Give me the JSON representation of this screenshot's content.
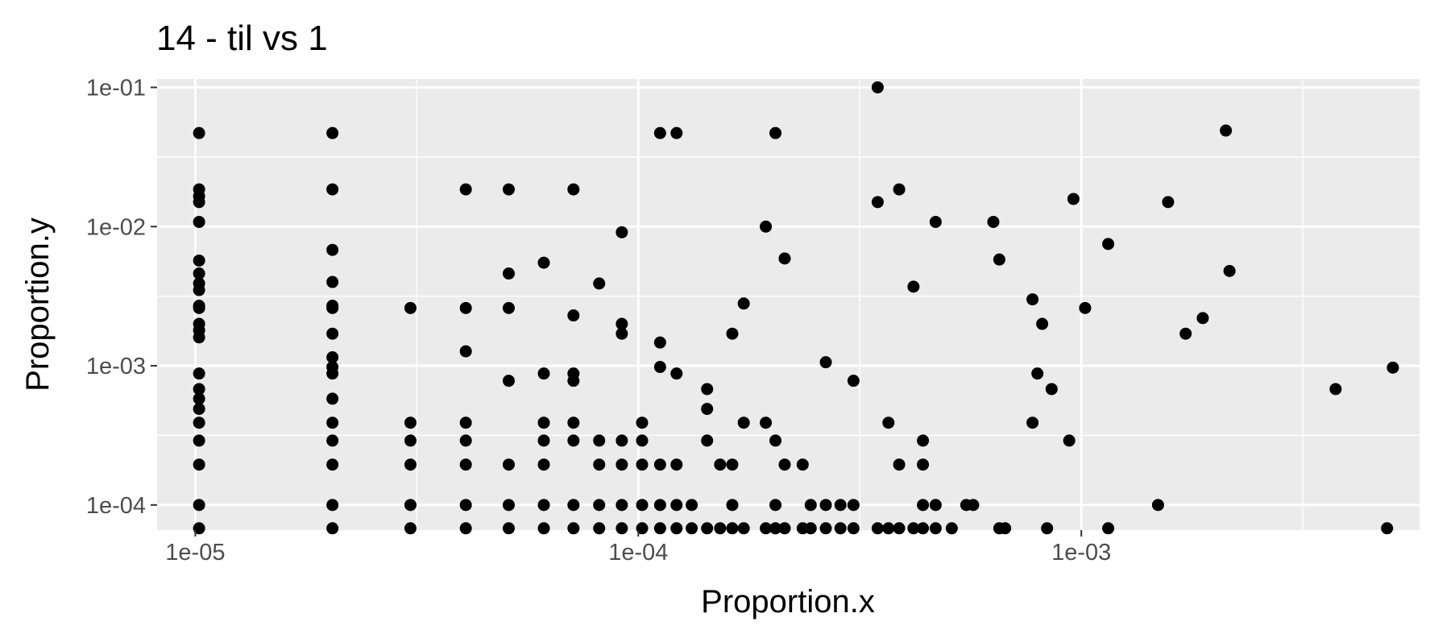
{
  "chart_data": {
    "type": "scatter",
    "title": "14 - til vs 1",
    "xlabel": "Proportion.x",
    "ylabel": "Proportion.y",
    "x_scale": "log10",
    "y_scale": "log10",
    "xlim": [
      8.2e-06,
      0.0058
    ],
    "ylim": [
      6.6e-05,
      0.115
    ],
    "x_ticks": [
      {
        "value": 1e-05,
        "label": "1e-05"
      },
      {
        "value": 0.0001,
        "label": "1e-04"
      },
      {
        "value": 0.001,
        "label": "1e-03"
      }
    ],
    "y_ticks": [
      {
        "value": 0.0001,
        "label": "1e-04"
      },
      {
        "value": 0.001,
        "label": "1e-03"
      },
      {
        "value": 0.01,
        "label": "1e-02"
      },
      {
        "value": 0.1,
        "label": "1e-01"
      }
    ],
    "x_minor_gridlines": [
      3.16e-05,
      0.000316,
      0.00316
    ],
    "y_minor_gridlines": [
      0.000316,
      0.00316,
      0.0316
    ],
    "grid": true,
    "panel_background": "#ebebeb",
    "gridline_color": "#ffffff",
    "point_color": "#000000",
    "series": [
      {
        "points": [
          [
            1.02e-05,
            0.047
          ],
          [
            1.02e-05,
            0.0185
          ],
          [
            1.02e-05,
            0.0165
          ],
          [
            1.02e-05,
            0.015
          ],
          [
            1.02e-05,
            0.0108
          ],
          [
            1.02e-05,
            0.0057
          ],
          [
            1.02e-05,
            0.0046
          ],
          [
            1.02e-05,
            0.0039
          ],
          [
            1.02e-05,
            0.0035
          ],
          [
            1.02e-05,
            0.0027
          ],
          [
            1.02e-05,
            0.0026
          ],
          [
            1.02e-05,
            0.002
          ],
          [
            1.02e-05,
            0.0018
          ],
          [
            1.02e-05,
            0.0016
          ],
          [
            1.02e-05,
            0.00088
          ],
          [
            1.02e-05,
            0.00068
          ],
          [
            1.02e-05,
            0.00058
          ],
          [
            1.02e-05,
            0.00049
          ],
          [
            1.02e-05,
            0.00039
          ],
          [
            1.02e-05,
            0.00029
          ],
          [
            1.02e-05,
            0.000195
          ],
          [
            1.02e-05,
            0.0001
          ],
          [
            1.02e-05,
            6.8e-05
          ],
          [
            2.04e-05,
            0.047
          ],
          [
            2.04e-05,
            0.0185
          ],
          [
            2.04e-05,
            0.0068
          ],
          [
            2.04e-05,
            0.004
          ],
          [
            2.04e-05,
            0.0027
          ],
          [
            2.04e-05,
            0.0026
          ],
          [
            2.04e-05,
            0.0017
          ],
          [
            2.04e-05,
            0.00115
          ],
          [
            2.04e-05,
            0.00098
          ],
          [
            2.04e-05,
            0.00088
          ],
          [
            2.04e-05,
            0.00058
          ],
          [
            2.04e-05,
            0.00039
          ],
          [
            2.04e-05,
            0.00029
          ],
          [
            2.04e-05,
            0.000195
          ],
          [
            2.04e-05,
            0.0001
          ],
          [
            2.04e-05,
            6.8e-05
          ],
          [
            3.06e-05,
            0.0026
          ],
          [
            3.06e-05,
            0.00039
          ],
          [
            3.06e-05,
            0.00029
          ],
          [
            3.06e-05,
            0.000195
          ],
          [
            3.06e-05,
            0.0001
          ],
          [
            3.06e-05,
            6.8e-05
          ],
          [
            4.08e-05,
            0.0185
          ],
          [
            4.08e-05,
            0.0026
          ],
          [
            4.08e-05,
            0.00127
          ],
          [
            4.08e-05,
            0.00039
          ],
          [
            4.08e-05,
            0.00029
          ],
          [
            4.08e-05,
            0.000195
          ],
          [
            4.08e-05,
            0.0001
          ],
          [
            4.08e-05,
            6.8e-05
          ],
          [
            5.1e-05,
            0.0185
          ],
          [
            5.1e-05,
            0.0046
          ],
          [
            5.1e-05,
            0.0026
          ],
          [
            5.1e-05,
            0.00078
          ],
          [
            5.1e-05,
            0.000195
          ],
          [
            5.1e-05,
            0.0001
          ],
          [
            5.1e-05,
            6.8e-05
          ],
          [
            6.12e-05,
            0.0055
          ],
          [
            6.12e-05,
            0.00088
          ],
          [
            6.12e-05,
            0.00039
          ],
          [
            6.12e-05,
            0.00029
          ],
          [
            6.12e-05,
            0.000195
          ],
          [
            6.12e-05,
            0.0001
          ],
          [
            6.12e-05,
            6.8e-05
          ],
          [
            7.14e-05,
            0.0185
          ],
          [
            7.14e-05,
            0.0023
          ],
          [
            7.14e-05,
            0.00088
          ],
          [
            7.14e-05,
            0.00078
          ],
          [
            7.14e-05,
            0.00039
          ],
          [
            7.14e-05,
            0.00029
          ],
          [
            7.14e-05,
            0.0001
          ],
          [
            7.14e-05,
            6.8e-05
          ],
          [
            8.16e-05,
            0.0039
          ],
          [
            8.16e-05,
            0.00029
          ],
          [
            8.16e-05,
            0.000195
          ],
          [
            8.16e-05,
            0.0001
          ],
          [
            8.16e-05,
            6.8e-05
          ],
          [
            9.18e-05,
            0.0091
          ],
          [
            9.18e-05,
            0.002
          ],
          [
            9.18e-05,
            0.0017
          ],
          [
            9.18e-05,
            0.00029
          ],
          [
            9.18e-05,
            0.000195
          ],
          [
            9.18e-05,
            0.0001
          ],
          [
            9.18e-05,
            6.8e-05
          ],
          [
            0.000102,
            0.00039
          ],
          [
            0.000102,
            0.00029
          ],
          [
            0.000102,
            0.000195
          ],
          [
            0.000102,
            0.0001
          ],
          [
            0.000102,
            6.8e-05
          ],
          [
            0.000112,
            0.047
          ],
          [
            0.000112,
            0.00147
          ],
          [
            0.000112,
            0.00098
          ],
          [
            0.000112,
            0.000195
          ],
          [
            0.000112,
            0.0001
          ],
          [
            0.000112,
            6.8e-05
          ],
          [
            0.000122,
            0.047
          ],
          [
            0.000122,
            0.00088
          ],
          [
            0.000122,
            0.000195
          ],
          [
            0.000122,
            0.0001
          ],
          [
            0.000122,
            6.8e-05
          ],
          [
            0.000132,
            0.0001
          ],
          [
            0.000132,
            6.8e-05
          ],
          [
            0.000143,
            0.00068
          ],
          [
            0.000143,
            0.00049
          ],
          [
            0.000143,
            0.00029
          ],
          [
            0.000143,
            6.8e-05
          ],
          [
            0.000153,
            0.000195
          ],
          [
            0.000153,
            6.8e-05
          ],
          [
            0.000163,
            0.0017
          ],
          [
            0.000163,
            0.000195
          ],
          [
            0.000163,
            0.0001
          ],
          [
            0.000163,
            6.8e-05
          ],
          [
            0.000173,
            0.0028
          ],
          [
            0.000173,
            0.00039
          ],
          [
            0.000173,
            6.8e-05
          ],
          [
            0.000194,
            0.01
          ],
          [
            0.000194,
            0.00039
          ],
          [
            0.000194,
            6.8e-05
          ],
          [
            0.000204,
            0.047
          ],
          [
            0.000204,
            0.00029
          ],
          [
            0.000204,
            0.0001
          ],
          [
            0.000204,
            6.8e-05
          ],
          [
            0.000214,
            0.0059
          ],
          [
            0.000214,
            0.000195
          ],
          [
            0.000214,
            6.8e-05
          ],
          [
            0.000235,
            0.000195
          ],
          [
            0.000235,
            6.8e-05
          ],
          [
            0.000245,
            0.0001
          ],
          [
            0.000245,
            6.8e-05
          ],
          [
            0.000265,
            0.00106
          ],
          [
            0.000265,
            0.0001
          ],
          [
            0.000265,
            6.8e-05
          ],
          [
            0.000286,
            0.0001
          ],
          [
            0.000286,
            6.8e-05
          ],
          [
            0.000306,
            0.00078
          ],
          [
            0.000306,
            0.0001
          ],
          [
            0.000306,
            6.8e-05
          ],
          [
            0.000347,
            0.1
          ],
          [
            0.000347,
            0.015
          ],
          [
            0.000347,
            6.8e-05
          ],
          [
            0.000367,
            0.00039
          ],
          [
            0.000367,
            6.8e-05
          ],
          [
            0.000388,
            0.0185
          ],
          [
            0.000388,
            0.000195
          ],
          [
            0.000388,
            6.8e-05
          ],
          [
            0.000418,
            0.0037
          ],
          [
            0.000418,
            6.8e-05
          ],
          [
            0.000439,
            0.00029
          ],
          [
            0.000439,
            0.000195
          ],
          [
            0.000439,
            0.0001
          ],
          [
            0.000439,
            6.8e-05
          ],
          [
            0.000469,
            0.0108
          ],
          [
            0.000469,
            0.0001
          ],
          [
            0.000469,
            6.8e-05
          ],
          [
            0.00051,
            6.8e-05
          ],
          [
            0.00055,
            0.0001
          ],
          [
            0.00057,
            0.0001
          ],
          [
            0.000633,
            0.0108
          ],
          [
            0.000653,
            0.0058
          ],
          [
            0.000653,
            6.8e-05
          ],
          [
            0.000673,
            6.8e-05
          ],
          [
            0.000776,
            0.003
          ],
          [
            0.000776,
            0.00039
          ],
          [
            0.000796,
            0.00088
          ],
          [
            0.000816,
            0.002
          ],
          [
            0.000837,
            6.8e-05
          ],
          [
            0.000857,
            0.00068
          ],
          [
            0.000939,
            0.00029
          ],
          [
            0.00096,
            0.0158
          ],
          [
            0.00102,
            0.0026
          ],
          [
            0.00115,
            0.0075
          ],
          [
            0.00115,
            6.8e-05
          ],
          [
            0.00149,
            0.0001
          ],
          [
            0.00157,
            0.015
          ],
          [
            0.00172,
            0.0017
          ],
          [
            0.00188,
            0.0022
          ],
          [
            0.00212,
            0.049
          ],
          [
            0.00216,
            0.0048
          ],
          [
            0.00375,
            0.00068
          ],
          [
            0.0049,
            6.8e-05
          ],
          [
            0.00505,
            0.00097
          ]
        ]
      }
    ]
  }
}
